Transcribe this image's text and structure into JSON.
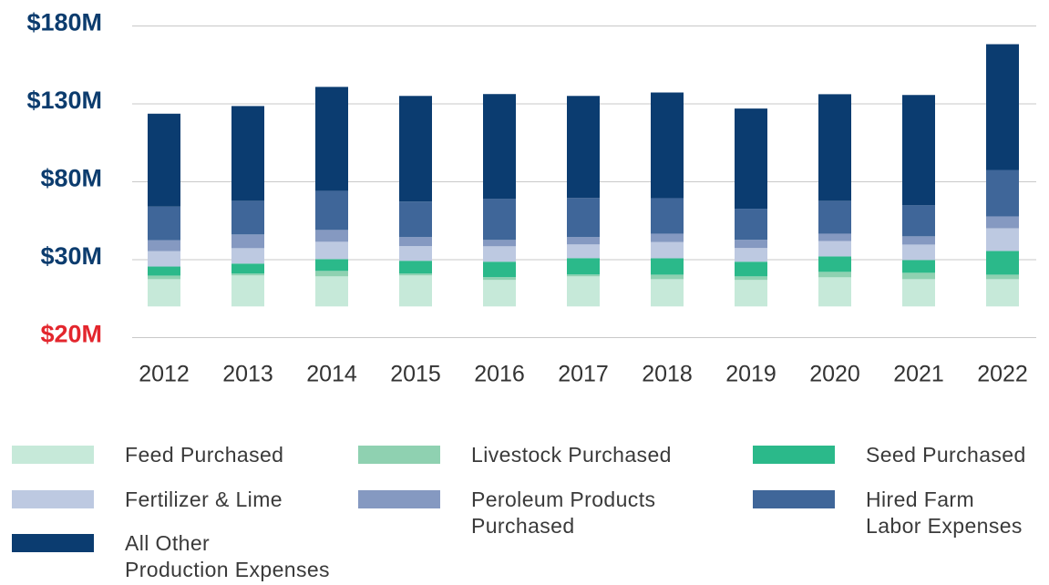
{
  "chart_data": {
    "type": "stacked-bar",
    "categories": [
      "2012",
      "2013",
      "2014",
      "2015",
      "2016",
      "2017",
      "2018",
      "2019",
      "2020",
      "2021",
      "2022"
    ],
    "series": [
      {
        "name": "Feed Purchased",
        "color": "#c6e9d9",
        "values": [
          17.5,
          19.9,
          19.3,
          19.9,
          17.0,
          19.3,
          17.5,
          17.0,
          18.7,
          17.5,
          17.5
        ]
      },
      {
        "name": "Livestock Purchased",
        "color": "#8fd1b1",
        "values": [
          2.3,
          1.2,
          3.5,
          1.2,
          1.8,
          1.2,
          2.9,
          2.3,
          3.5,
          4.1,
          2.9
        ]
      },
      {
        "name": "Seed Purchased",
        "color": "#2bb98a",
        "values": [
          5.8,
          6.4,
          7.6,
          8.2,
          9.9,
          10.5,
          10.5,
          9.4,
          9.9,
          8.2,
          15.2
        ]
      },
      {
        "name": "Fertilizer & Lime",
        "color": "#bdc9e1",
        "values": [
          9.9,
          9.9,
          11.1,
          9.4,
          9.9,
          8.8,
          10.5,
          8.8,
          9.9,
          9.9,
          14.6
        ]
      },
      {
        "name": "Peroleum Products\nPurchased",
        "color": "#8599c1",
        "values": [
          7.0,
          8.8,
          7.6,
          5.8,
          4.1,
          4.7,
          5.3,
          5.3,
          4.7,
          5.3,
          7.6
        ]
      },
      {
        "name": "Hired Farm\nLabor Expenses",
        "color": "#3f6699",
        "values": [
          21.6,
          21.6,
          25.1,
          22.8,
          26.3,
          25.1,
          22.8,
          19.9,
          21.1,
          19.9,
          29.8
        ]
      },
      {
        "name": "All Other\nProduction Expenses",
        "color": "#0b3c70",
        "values": [
          59.6,
          60.8,
          66.7,
          67.8,
          67.3,
          65.5,
          67.8,
          64.3,
          68.4,
          70.8,
          80.7
        ]
      }
    ],
    "ylim": [
      -20,
      180
    ],
    "yticks": [
      {
        "value": -20,
        "label": "$20M",
        "color": "#e3262d"
      },
      {
        "value": 30,
        "label": "$30M"
      },
      {
        "value": 80,
        "label": "$80M"
      },
      {
        "value": 130,
        "label": "$130M"
      },
      {
        "value": 180,
        "label": "$180M"
      }
    ],
    "tick_color": "#0c3c6e",
    "grid": true
  }
}
